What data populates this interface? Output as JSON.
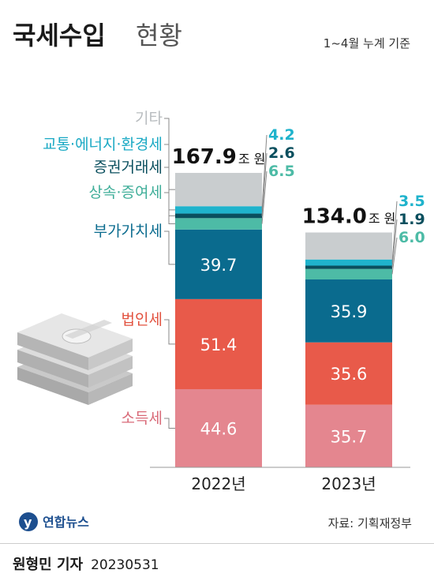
{
  "title": {
    "main": "국세수입",
    "sub": "현황"
  },
  "subtitle": "1~4월 누계 기준",
  "unit": "조 원",
  "source": "자료: 기획재정부",
  "logo_text": "연합뉴스",
  "credit": {
    "reporter": "원형민 기자",
    "date": "20230531"
  },
  "colors": {
    "소득세": "#e4868f",
    "법인세": "#e85a4a",
    "부가가치세": "#0a6b8e",
    "상속·증여세": "#4dbba6",
    "증권거래세": "#0a4f5e",
    "교통·에너지·환경세": "#1fb3cc",
    "기타": "#c9cdcf"
  },
  "chart_data": {
    "type": "bar",
    "stacked": true,
    "categories": [
      "2022년",
      "2023년"
    ],
    "totals": [
      "167.9",
      "134.0"
    ],
    "total_values": [
      167.9,
      134.0
    ],
    "series": [
      {
        "name": "소득세",
        "values": [
          44.6,
          35.7
        ],
        "labels": [
          "44.6",
          "35.7"
        ]
      },
      {
        "name": "법인세",
        "values": [
          51.4,
          35.6
        ],
        "labels": [
          "51.4",
          "35.6"
        ]
      },
      {
        "name": "부가가치세",
        "values": [
          39.7,
          35.9
        ],
        "labels": [
          "39.7",
          "35.9"
        ]
      },
      {
        "name": "상속·증여세",
        "values": [
          6.5,
          6.0
        ],
        "labels": [
          "6.5",
          "6.0"
        ]
      },
      {
        "name": "증권거래세",
        "values": [
          2.6,
          1.9
        ],
        "labels": [
          "2.6",
          "1.9"
        ]
      },
      {
        "name": "교통·에너지·환경세",
        "values": [
          4.2,
          3.5
        ],
        "labels": [
          "4.2",
          "3.5"
        ]
      },
      {
        "name": "기타",
        "values": [
          19.0,
          15.4
        ],
        "labels": [
          "",
          ""
        ]
      }
    ]
  }
}
